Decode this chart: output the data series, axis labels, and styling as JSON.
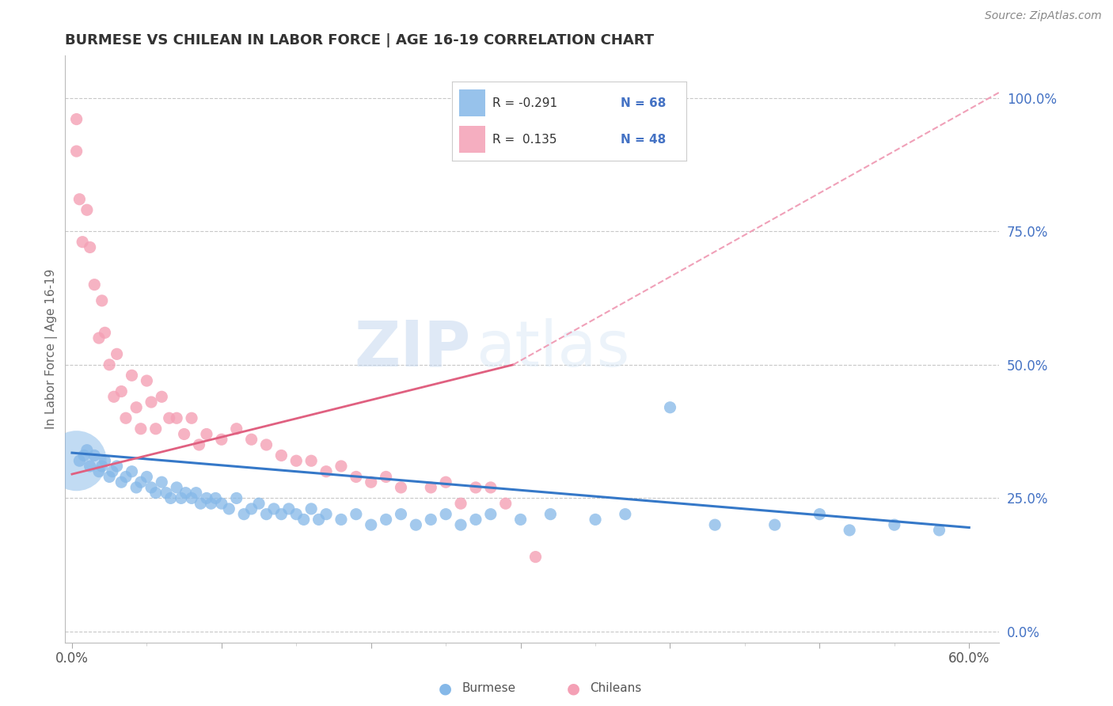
{
  "title": "BURMESE VS CHILEAN IN LABOR FORCE | AGE 16-19 CORRELATION CHART",
  "source": "Source: ZipAtlas.com",
  "ylabel_left": "In Labor Force | Age 16-19",
  "x_ticks": [
    0.0,
    0.1,
    0.2,
    0.3,
    0.4,
    0.5,
    0.6
  ],
  "x_tick_labels": [
    "0.0%",
    "",
    "",
    "",
    "",
    "",
    "60.0%"
  ],
  "y_ticks_right": [
    0.0,
    0.25,
    0.5,
    0.75,
    1.0
  ],
  "y_tick_labels_right": [
    "0.0%",
    "25.0%",
    "50.0%",
    "75.0%",
    "100.0%"
  ],
  "xlim": [
    -0.005,
    0.62
  ],
  "ylim": [
    -0.02,
    1.08
  ],
  "burmese_color": "#85b8e8",
  "chilean_color": "#f4a0b5",
  "burmese_line_color": "#3578c8",
  "chilean_line_color": "#e06080",
  "chilean_dashed_color": "#f0a0b8",
  "background_color": "#ffffff",
  "grid_color": "#c8c8c8",
  "legend_r_burmese": "-0.291",
  "legend_n_burmese": "68",
  "legend_r_chilean": "0.135",
  "legend_n_chilean": "48",
  "watermark_zip": "ZIP",
  "watermark_atlas": "atlas",
  "burmese_x": [
    0.005,
    0.008,
    0.01,
    0.012,
    0.015,
    0.018,
    0.02,
    0.022,
    0.025,
    0.027,
    0.03,
    0.033,
    0.036,
    0.04,
    0.043,
    0.046,
    0.05,
    0.053,
    0.056,
    0.06,
    0.063,
    0.066,
    0.07,
    0.073,
    0.076,
    0.08,
    0.083,
    0.086,
    0.09,
    0.093,
    0.096,
    0.1,
    0.105,
    0.11,
    0.115,
    0.12,
    0.125,
    0.13,
    0.135,
    0.14,
    0.145,
    0.15,
    0.155,
    0.16,
    0.165,
    0.17,
    0.18,
    0.19,
    0.2,
    0.21,
    0.22,
    0.23,
    0.24,
    0.25,
    0.26,
    0.27,
    0.28,
    0.3,
    0.32,
    0.35,
    0.37,
    0.4,
    0.43,
    0.47,
    0.5,
    0.52,
    0.55,
    0.58
  ],
  "burmese_y": [
    0.32,
    0.33,
    0.34,
    0.31,
    0.33,
    0.3,
    0.31,
    0.32,
    0.29,
    0.3,
    0.31,
    0.28,
    0.29,
    0.3,
    0.27,
    0.28,
    0.29,
    0.27,
    0.26,
    0.28,
    0.26,
    0.25,
    0.27,
    0.25,
    0.26,
    0.25,
    0.26,
    0.24,
    0.25,
    0.24,
    0.25,
    0.24,
    0.23,
    0.25,
    0.22,
    0.23,
    0.24,
    0.22,
    0.23,
    0.22,
    0.23,
    0.22,
    0.21,
    0.23,
    0.21,
    0.22,
    0.21,
    0.22,
    0.2,
    0.21,
    0.22,
    0.2,
    0.21,
    0.22,
    0.2,
    0.21,
    0.22,
    0.21,
    0.22,
    0.21,
    0.22,
    0.42,
    0.2,
    0.2,
    0.22,
    0.19,
    0.2,
    0.19
  ],
  "burmese_big_x": [
    0.003
  ],
  "burmese_big_y": [
    0.32
  ],
  "burmese_big_size": 3000,
  "chilean_x": [
    0.003,
    0.003,
    0.005,
    0.007,
    0.01,
    0.012,
    0.015,
    0.018,
    0.02,
    0.022,
    0.025,
    0.028,
    0.03,
    0.033,
    0.036,
    0.04,
    0.043,
    0.046,
    0.05,
    0.053,
    0.056,
    0.06,
    0.065,
    0.07,
    0.075,
    0.08,
    0.085,
    0.09,
    0.1,
    0.11,
    0.12,
    0.13,
    0.14,
    0.15,
    0.16,
    0.17,
    0.18,
    0.19,
    0.2,
    0.21,
    0.22,
    0.24,
    0.25,
    0.26,
    0.27,
    0.28,
    0.29,
    0.31
  ],
  "chilean_y": [
    0.96,
    0.9,
    0.81,
    0.73,
    0.79,
    0.72,
    0.65,
    0.55,
    0.62,
    0.56,
    0.5,
    0.44,
    0.52,
    0.45,
    0.4,
    0.48,
    0.42,
    0.38,
    0.47,
    0.43,
    0.38,
    0.44,
    0.4,
    0.4,
    0.37,
    0.4,
    0.35,
    0.37,
    0.36,
    0.38,
    0.36,
    0.35,
    0.33,
    0.32,
    0.32,
    0.3,
    0.31,
    0.29,
    0.28,
    0.29,
    0.27,
    0.27,
    0.28,
    0.24,
    0.27,
    0.27,
    0.24,
    0.14
  ],
  "burmese_line": {
    "x0": 0.0,
    "x1": 0.6,
    "y0": 0.335,
    "y1": 0.195
  },
  "chilean_line_solid": {
    "x0": 0.0,
    "x1": 0.295,
    "y0": 0.295,
    "y1": 0.5
  },
  "chilean_line_dash": {
    "x0": 0.295,
    "x1": 0.62,
    "y0": 0.5,
    "y1": 1.01
  }
}
